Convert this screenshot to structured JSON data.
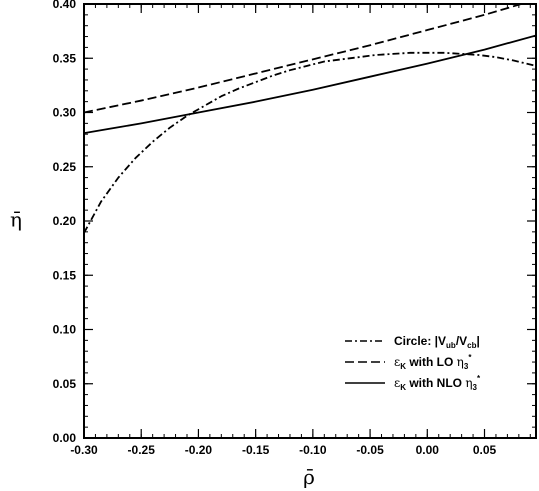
{
  "chart_data": {
    "type": "line",
    "title": "",
    "xlabel": "ρ̄",
    "ylabel": "η̄",
    "xlim": [
      -0.3,
      0.095
    ],
    "ylim": [
      0.0,
      0.4
    ],
    "xticks": [
      -0.3,
      -0.25,
      -0.2,
      -0.15,
      -0.1,
      -0.05,
      0.0,
      0.05
    ],
    "xtick_labels": [
      "-0.30",
      "-0.25",
      "-0.20",
      "-0.15",
      "-0.10",
      "-0.05",
      "0.00",
      "0.05"
    ],
    "yticks": [
      0.0,
      0.05,
      0.1,
      0.15,
      0.2,
      0.25,
      0.3,
      0.35,
      0.4
    ],
    "ytick_labels": [
      "0.00",
      "0.05",
      "0.10",
      "0.15",
      "0.20",
      "0.25",
      "0.30",
      "0.35",
      "0.40"
    ],
    "grid": false,
    "legend_position": "bottom-right",
    "series": [
      {
        "name": "Circle: |V_ub/V_cb|",
        "style": "dashdot",
        "color": "#000000",
        "x": [
          -0.3,
          -0.285,
          -0.27,
          -0.255,
          -0.24,
          -0.225,
          -0.21,
          -0.195,
          -0.18,
          -0.165,
          -0.15,
          -0.135,
          -0.12,
          -0.105,
          -0.09,
          -0.075,
          -0.06,
          -0.045,
          -0.03,
          -0.015,
          0.0,
          0.015,
          0.03,
          0.045,
          0.06,
          0.075,
          0.095
        ],
        "y": [
          0.189,
          0.218,
          0.24,
          0.258,
          0.273,
          0.286,
          0.297,
          0.306,
          0.315,
          0.322,
          0.328,
          0.334,
          0.339,
          0.343,
          0.347,
          0.349,
          0.351,
          0.353,
          0.354,
          0.355,
          0.355,
          0.355,
          0.354,
          0.353,
          0.351,
          0.348,
          0.343
        ]
      },
      {
        "name": "ε_K with LO η_3*",
        "style": "dashed",
        "color": "#000000",
        "x": [
          -0.3,
          -0.25,
          -0.2,
          -0.15,
          -0.1,
          -0.05,
          0.0,
          0.05,
          0.095
        ],
        "y": [
          0.3,
          0.311,
          0.323,
          0.336,
          0.349,
          0.362,
          0.376,
          0.39,
          0.404
        ]
      },
      {
        "name": "ε_K with NLO η_3*",
        "style": "solid",
        "color": "#000000",
        "x": [
          -0.3,
          -0.25,
          -0.2,
          -0.15,
          -0.1,
          -0.05,
          0.0,
          0.05,
          0.095
        ],
        "y": [
          0.281,
          0.29,
          0.3,
          0.31,
          0.321,
          0.333,
          0.345,
          0.358,
          0.371
        ]
      }
    ],
    "legend": {
      "entries": [
        {
          "prefix": "Circle: |V",
          "sub1": "ub",
          "mid": "/V",
          "sub2": "cb",
          "suffix": "|"
        },
        {
          "greek": "ε",
          "sub": "K",
          "text": " with LO ",
          "eta": "η",
          "eta_sub": "3",
          "eta_sup": "*"
        },
        {
          "greek": "ε",
          "sub": "K",
          "text": " with NLO ",
          "eta": "η",
          "eta_sub": "3",
          "eta_sup": "*"
        }
      ]
    }
  }
}
